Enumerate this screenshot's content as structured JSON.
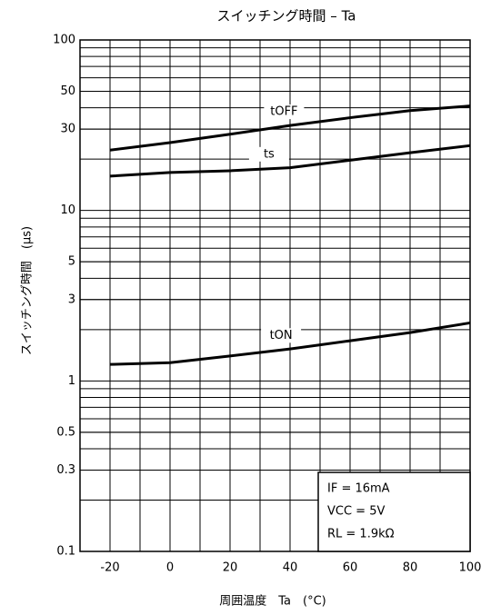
{
  "chart_data": {
    "type": "line",
    "title": "スイッチング時間 – Ta",
    "x_label": "周囲温度　Ta　(°C)",
    "y_label": "スイッチング時間　(μs)",
    "x": [
      -20,
      0,
      20,
      40,
      60,
      80,
      100
    ],
    "series": [
      {
        "name": "tOFF",
        "color": "#000000",
        "values": [
          22.6,
          25,
          28,
          31.5,
          35,
          38.5,
          41
        ]
      },
      {
        "name": "ts",
        "color": "#000000",
        "values": [
          15.9,
          16.7,
          17.1,
          17.8,
          19.7,
          21.8,
          24
        ]
      },
      {
        "name": "tON",
        "color": "#000000",
        "values": [
          1.25,
          1.28,
          1.4,
          1.54,
          1.72,
          1.92,
          2.19
        ]
      }
    ],
    "xlim": [
      -30,
      100
    ],
    "xticks": [
      -20,
      0,
      20,
      40,
      60,
      80,
      100
    ],
    "ylim": [
      0.1,
      100
    ],
    "yticks": [
      0.1,
      0.3,
      0.5,
      1,
      3,
      5,
      10,
      30,
      50,
      100
    ],
    "log_y": true,
    "grid": true,
    "annotations": [
      "IF = 16mA",
      "VCC = 5V",
      "RL = 1.9kΩ"
    ]
  }
}
